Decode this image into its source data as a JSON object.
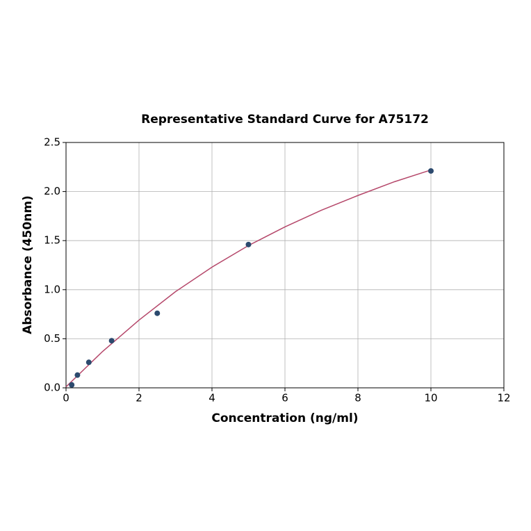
{
  "chart_data": {
    "type": "scatter",
    "title": "Representative Standard Curve for A75172",
    "x_label": "Concentration (ng/ml)",
    "y_label": "Absorbance (450nm)",
    "xlim": [
      0,
      12
    ],
    "ylim": [
      0,
      2.5
    ],
    "xticks": [
      0,
      2,
      4,
      6,
      8,
      10,
      12
    ],
    "yticks": [
      {
        "value": 0,
        "label": "0.0"
      },
      {
        "value": 0.5,
        "label": "0.5"
      },
      {
        "value": 1,
        "label": "1.0"
      },
      {
        "value": 1.5,
        "label": "1.5"
      },
      {
        "value": 2,
        "label": "2.0"
      },
      {
        "value": 2.5,
        "label": "2.5"
      }
    ],
    "grid": true,
    "series": [
      {
        "type": "line",
        "color": "#b5476a",
        "x": [
          0,
          1,
          2,
          3,
          4,
          5,
          6,
          7,
          8,
          9,
          10
        ],
        "values": [
          0.01,
          0.37,
          0.69,
          0.98,
          1.23,
          1.45,
          1.64,
          1.81,
          1.96,
          2.1,
          2.22
        ]
      },
      {
        "type": "scatter",
        "color": "#2c4a6e",
        "x": [
          0.156,
          0.3125,
          0.625,
          1.25,
          2.5,
          5,
          10
        ],
        "values": [
          0.03,
          0.13,
          0.26,
          0.48,
          0.76,
          1.46,
          2.21
        ]
      }
    ]
  }
}
